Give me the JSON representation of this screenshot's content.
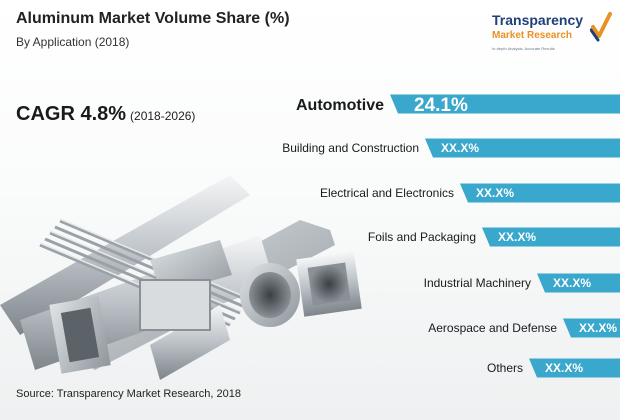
{
  "header": {
    "title": "Aluminum Market Volume Share (%)",
    "subtitle": "By Application (2018)"
  },
  "cagr": {
    "value": "CAGR 4.8%",
    "period": "(2018-2026)"
  },
  "logo": {
    "line1": "Transparency",
    "line2": "Market Research",
    "tagline": "In-depth Analysis. Accurate Results",
    "colors": {
      "primary": "#1f3f78",
      "accent": "#e89223"
    }
  },
  "chart_data": {
    "type": "bar",
    "orientation": "horizontal",
    "categories": [
      "Automotive",
      "Building and Construction",
      "Electrical and Electronics",
      "Foils and Packaging",
      "Industrial Machinery",
      "Aerospace and Defense",
      "Others"
    ],
    "labels": [
      "24.1%",
      "XX.X%",
      "XX.X%",
      "XX.X%",
      "XX.X%",
      "XX.X%",
      "XX.X%"
    ],
    "values": [
      24.1,
      null,
      null,
      null,
      null,
      null,
      null
    ],
    "highlight": "Automotive",
    "colors": {
      "bar": "#3aa7cc",
      "label_text": "#ffffff"
    }
  },
  "source": "Source: Transparency Market Research, 2018"
}
